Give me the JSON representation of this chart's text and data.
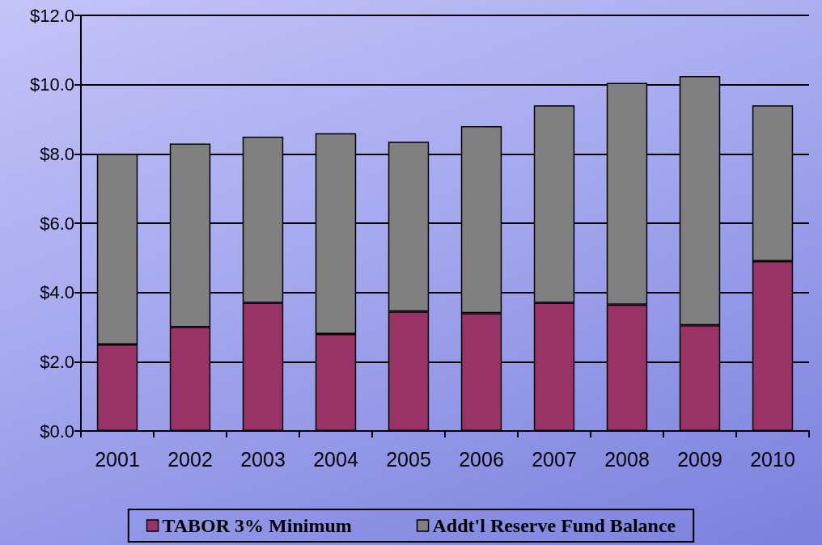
{
  "chart_data": {
    "type": "bar",
    "stacked": true,
    "categories": [
      "2001",
      "2002",
      "2003",
      "2004",
      "2005",
      "2006",
      "2007",
      "2008",
      "2009",
      "2010"
    ],
    "series": [
      {
        "name": "TABOR 3% Minimum",
        "color": "#993366",
        "values": [
          2.5,
          3.0,
          3.7,
          2.8,
          3.45,
          3.4,
          3.7,
          3.65,
          3.05,
          4.9
        ]
      },
      {
        "name": "Addt'l Reserve Fund Balance",
        "color": "#808080",
        "values": [
          5.5,
          5.3,
          4.8,
          5.8,
          4.9,
          5.4,
          5.7,
          6.4,
          7.2,
          4.5
        ]
      }
    ],
    "ylim": [
      0,
      12
    ],
    "yticks": [
      {
        "value": 0,
        "label": "$0.0"
      },
      {
        "value": 2,
        "label": "$2.0"
      },
      {
        "value": 4,
        "label": "$4.0"
      },
      {
        "value": 6,
        "label": "$6.0"
      },
      {
        "value": 8,
        "label": "$8.0"
      },
      {
        "value": 10,
        "label": "$10.0"
      },
      {
        "value": 12,
        "label": "$12.0"
      }
    ],
    "grid": "y",
    "legend": "bottom"
  }
}
